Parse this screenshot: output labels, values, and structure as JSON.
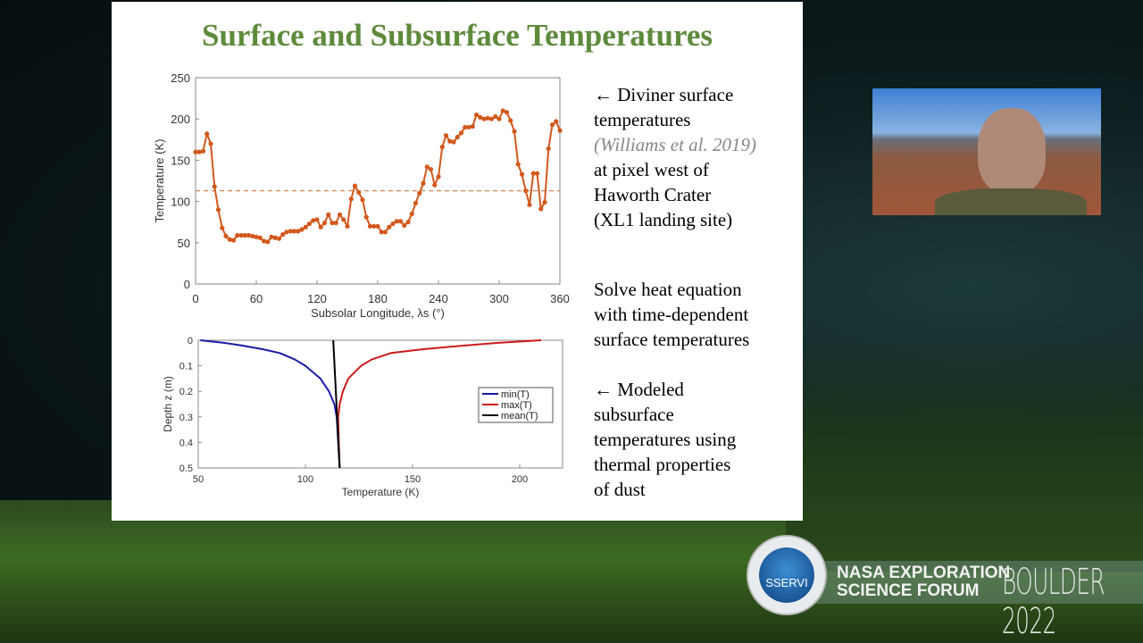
{
  "slide": {
    "title": "Surface and Subsurface Temperatures",
    "notes": [
      {
        "lines": [
          "← Diviner surface",
          "temperatures"
        ],
        "citation": "(Williams et al. 2019)",
        "after": [
          "at pixel west of",
          "Haworth Crater",
          "(XL1 landing site)"
        ]
      },
      {
        "lines": [
          "Solve heat equation",
          "with time-dependent",
          "surface temperatures"
        ]
      },
      {
        "lines": [
          "← Modeled",
          "subsurface",
          "temperatures using",
          "thermal properties",
          "of dust"
        ]
      }
    ]
  },
  "colors": {
    "surface_series": "#d2581c",
    "min": "#1a1aa8",
    "max": "#cc1a1a",
    "mean": "#000000",
    "title": "#5e8a3c"
  },
  "chart_data": [
    {
      "type": "line",
      "xlabel": "Subsolar Longitude, λs (°)",
      "ylabel": "Temperature (K)",
      "xlim": [
        0,
        360
      ],
      "ylim": [
        0,
        250
      ],
      "xticks": [
        0,
        60,
        120,
        180,
        240,
        300,
        360
      ],
      "yticks": [
        0,
        50,
        100,
        150,
        200,
        250
      ],
      "grid": false,
      "markers": true,
      "reference_line": {
        "y": 113,
        "style": "dashed"
      },
      "x_step": 3.75,
      "values": [
        160,
        160,
        161,
        182,
        170,
        118,
        90,
        68,
        58,
        54,
        53,
        59,
        59,
        59,
        59,
        58,
        57,
        56,
        52,
        51,
        57,
        56,
        55,
        60,
        63,
        64,
        64,
        64,
        66,
        69,
        73,
        77,
        78,
        69,
        74,
        84,
        74,
        74,
        84,
        78,
        70,
        103,
        119,
        111,
        102,
        81,
        70,
        70,
        70,
        63,
        63,
        69,
        73,
        76,
        76,
        71,
        75,
        85,
        98,
        110,
        122,
        142,
        139,
        120,
        130,
        166,
        180,
        173,
        172,
        178,
        183,
        190,
        190,
        191,
        205,
        202,
        200,
        201,
        200,
        203,
        200,
        210,
        208,
        198,
        185,
        145,
        133,
        113,
        96,
        134,
        134,
        91,
        99,
        164,
        193,
        197,
        186
      ]
    },
    {
      "type": "line",
      "xlabel": "Temperature (K)",
      "ylabel": "Depth z (m)",
      "xlim": [
        50,
        220
      ],
      "ylim": [
        0,
        0.5
      ],
      "y_reversed": true,
      "xticks": [
        50,
        100,
        150,
        200
      ],
      "yticks": [
        0,
        0.1,
        0.2,
        0.3,
        0.4,
        0.5
      ],
      "legend": "right",
      "depth": [
        0,
        0.01,
        0.02,
        0.035,
        0.05,
        0.075,
        0.1,
        0.15,
        0.2,
        0.25,
        0.3,
        0.4,
        0.5
      ],
      "series": [
        {
          "name": "min(T)",
          "values": [
            51,
            62,
            70,
            80,
            88,
            95,
            100,
            107,
            111,
            113.5,
            114.6,
            115.3,
            116
          ]
        },
        {
          "name": "max(T)",
          "values": [
            210,
            190,
            175,
            155,
            140,
            131,
            126,
            120,
            117.5,
            116,
            115.3,
            115.6,
            116
          ]
        },
        {
          "name": "mean(T)",
          "values": [
            113,
            113.06,
            113.12,
            113.2,
            113.3,
            113.45,
            113.6,
            113.9,
            114.2,
            114.5,
            114.8,
            115.4,
            116
          ]
        }
      ]
    }
  ],
  "banner": {
    "line1": "NASA EXPLORATION",
    "line2": "SCIENCE FORUM",
    "event": "BOULDER 2022",
    "logo_text": "SSERVI"
  }
}
